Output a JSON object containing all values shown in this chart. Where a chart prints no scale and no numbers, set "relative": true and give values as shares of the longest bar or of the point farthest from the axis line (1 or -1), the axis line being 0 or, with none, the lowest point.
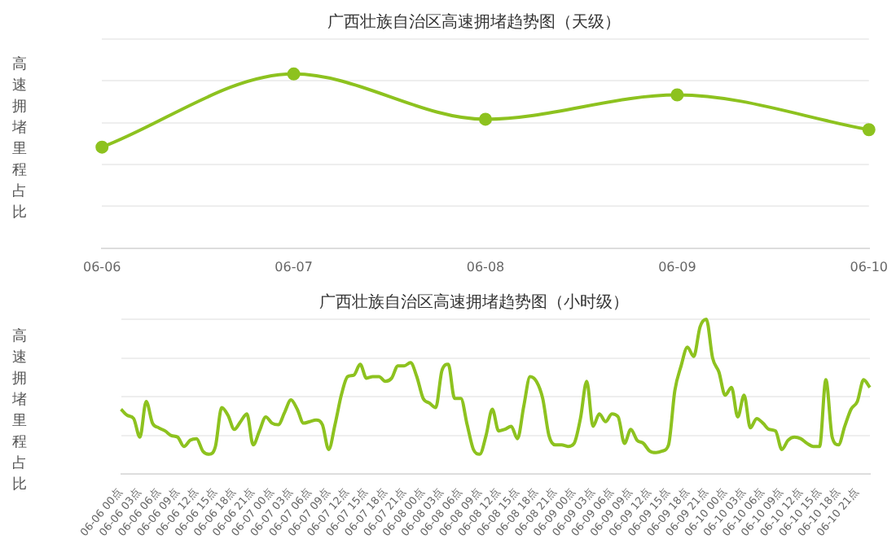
{
  "chart_data": [
    {
      "type": "line",
      "title": "广西壮族自治区高速拥堵趋势图（天级）",
      "ylabel": "高速拥堵里程占比",
      "relative": true,
      "categories": [
        "06-06",
        "06-07",
        "06-08",
        "06-09",
        "06-10"
      ],
      "series": [
        {
          "color": "#8dc21f",
          "values": [
            0.58,
            1,
            0.74,
            0.88,
            0.68
          ]
        }
      ],
      "grid": "y",
      "tick_labels": "x",
      "marker": "circle",
      "legend": false
    },
    {
      "type": "line",
      "title": "广西壮族自治区高速拥堵趋势图（小时级）",
      "ylabel": "高速拥堵里程占比",
      "relative": true,
      "categories": [
        "06-06 00点",
        null,
        null,
        "06-06 03点",
        null,
        null,
        "06-06 06点",
        null,
        null,
        "06-06 09点",
        null,
        null,
        "06-06 12点",
        null,
        null,
        "06-06 15点",
        null,
        null,
        "06-06 18点",
        null,
        null,
        "06-06 21点",
        null,
        null,
        "06-07 00点",
        null,
        null,
        "06-07 03点",
        null,
        null,
        "06-07 06点",
        null,
        null,
        "06-07 09点",
        null,
        null,
        "06-07 12点",
        null,
        null,
        "06-07 15点",
        null,
        null,
        "06-07 18点",
        null,
        null,
        "06-07 21点",
        null,
        null,
        "06-08 00点",
        null,
        null,
        "06-08 03点",
        null,
        null,
        "06-08 06点",
        null,
        null,
        "06-08 09点",
        null,
        null,
        "06-08 12点",
        null,
        null,
        "06-08 15点",
        null,
        null,
        "06-08 18点",
        null,
        null,
        "06-08 21点",
        null,
        null,
        "06-09 00点",
        null,
        null,
        "06-09 03点",
        null,
        null,
        "06-09 06点",
        null,
        null,
        "06-09 09点",
        null,
        null,
        "06-09 12点",
        null,
        null,
        "06-09 15点",
        null,
        null,
        "06-09 18点",
        null,
        null,
        "06-09 21点",
        null,
        null,
        "06-10 00点",
        null,
        null,
        "06-10 03点",
        null,
        null,
        "06-10 06点",
        null,
        null,
        "06-10 09点",
        null,
        null,
        "06-10 12点",
        null,
        null,
        "06-10 15点",
        null,
        null,
        "06-10 18点",
        null,
        null,
        "06-10 21点",
        null,
        null
      ],
      "series": [
        {
          "color": "#8dc21f",
          "values": [
            0.42,
            0.38,
            0.36,
            0.24,
            0.47,
            0.33,
            0.3,
            0.28,
            0.25,
            0.24,
            0.18,
            0.22,
            0.23,
            0.15,
            0.13,
            0.18,
            0.43,
            0.38,
            0.29,
            0.34,
            0.39,
            0.19,
            0.28,
            0.37,
            0.33,
            0.32,
            0.4,
            0.48,
            0.42,
            0.33,
            0.34,
            0.35,
            0.32,
            0.16,
            0.32,
            0.51,
            0.63,
            0.64,
            0.71,
            0.62,
            0.63,
            0.63,
            0.6,
            0.62,
            0.7,
            0.7,
            0.72,
            0.63,
            0.49,
            0.46,
            0.43,
            0.67,
            0.71,
            0.49,
            0.49,
            0.32,
            0.16,
            0.13,
            0.25,
            0.42,
            0.28,
            0.29,
            0.31,
            0.23,
            0.44,
            0.63,
            0.6,
            0.49,
            0.25,
            0.19,
            0.19,
            0.18,
            0.2,
            0.36,
            0.6,
            0.31,
            0.39,
            0.34,
            0.39,
            0.37,
            0.2,
            0.29,
            0.22,
            0.2,
            0.15,
            0.14,
            0.15,
            0.19,
            0.54,
            0.7,
            0.82,
            0.76,
            0.95,
            1,
            0.75,
            0.66,
            0.51,
            0.56,
            0.37,
            0.51,
            0.3,
            0.36,
            0.33,
            0.29,
            0.28,
            0.16,
            0.22,
            0.24,
            0.23,
            0.2,
            0.18,
            0.18,
            0.61,
            0.24,
            0.19,
            0.31,
            0.42,
            0.47,
            0.61,
            0.56
          ]
        }
      ],
      "grid": "y",
      "tick_labels": "x",
      "marker": "none",
      "legend": false
    }
  ]
}
